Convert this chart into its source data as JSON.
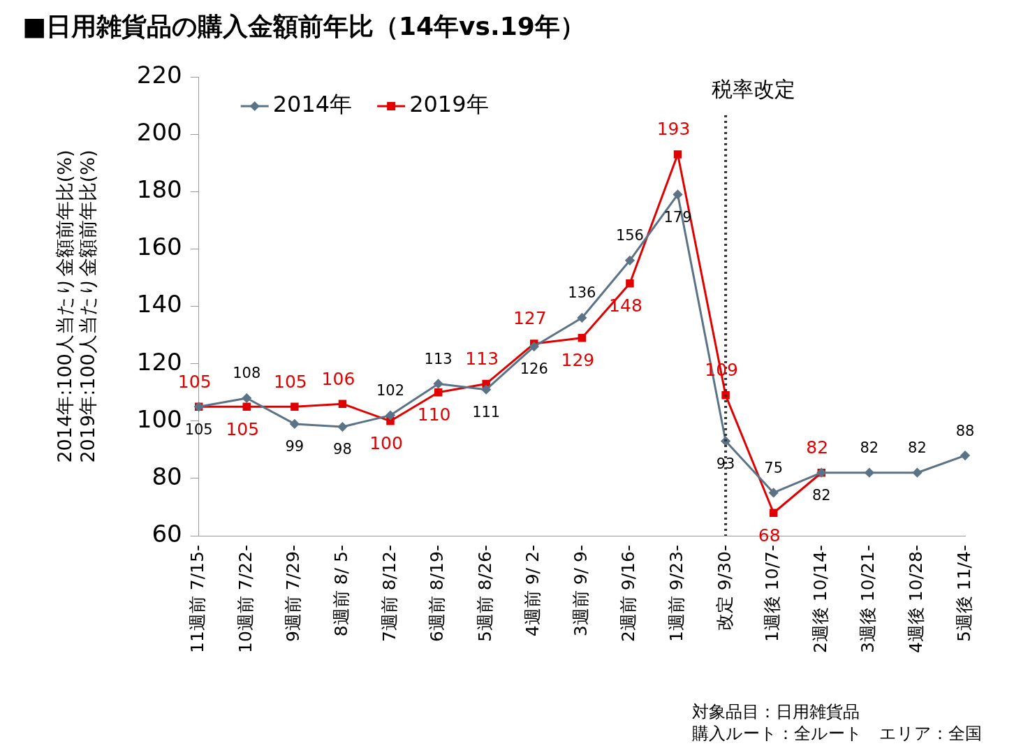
{
  "chart_data": {
    "type": "line",
    "title": "■日用雑貨品の購入金額前年比（14年vs.19年）",
    "ylabel": "2014年:100人当たり金額前年比(%)\n2019年:100人当たり金額前年比(%)",
    "categories": [
      "11週前 7/15-",
      "10週前 7/22-",
      "9週前 7/29-",
      "8週前 8/ 5-",
      "7週前 8/12-",
      "6週前 8/19-",
      "5週前 8/26-",
      "4週前 9/ 2-",
      "3週前 9/ 9-",
      "2週前 9/16-",
      "1週前 9/23-",
      "改定 9/30-",
      "1週後 10/7-",
      "2週後 10/14-",
      "3週後 10/21-",
      "4週後 10/28-",
      "5週後 11/4-"
    ],
    "series": [
      {
        "name": "2014年",
        "color": "#5b7386",
        "marker": "diamond",
        "values": [
          105,
          108,
          99,
          98,
          102,
          113,
          111,
          126,
          136,
          156,
          179,
          93,
          75,
          82,
          82,
          82,
          88
        ]
      },
      {
        "name": "2019年",
        "color": "#e00000",
        "marker": "square",
        "values": [
          105,
          105,
          105,
          106,
          100,
          110,
          113,
          127,
          129,
          148,
          193,
          109,
          68,
          82,
          null,
          null,
          null
        ]
      }
    ],
    "ylim": [
      60,
      220
    ],
    "yticks": [
      60,
      80,
      100,
      120,
      140,
      160,
      180,
      200,
      220
    ],
    "grid": false,
    "legend": "top left",
    "data_labels": true,
    "ref_lines": [
      {
        "axis": "x",
        "value": "改定 9/30-",
        "label": "税率改定",
        "color": "#333333",
        "line_style": "dotted"
      }
    ],
    "annotations": [
      "対象品目：日用雑貨品",
      "購入ルート：全ルート　エリア：全国"
    ]
  }
}
